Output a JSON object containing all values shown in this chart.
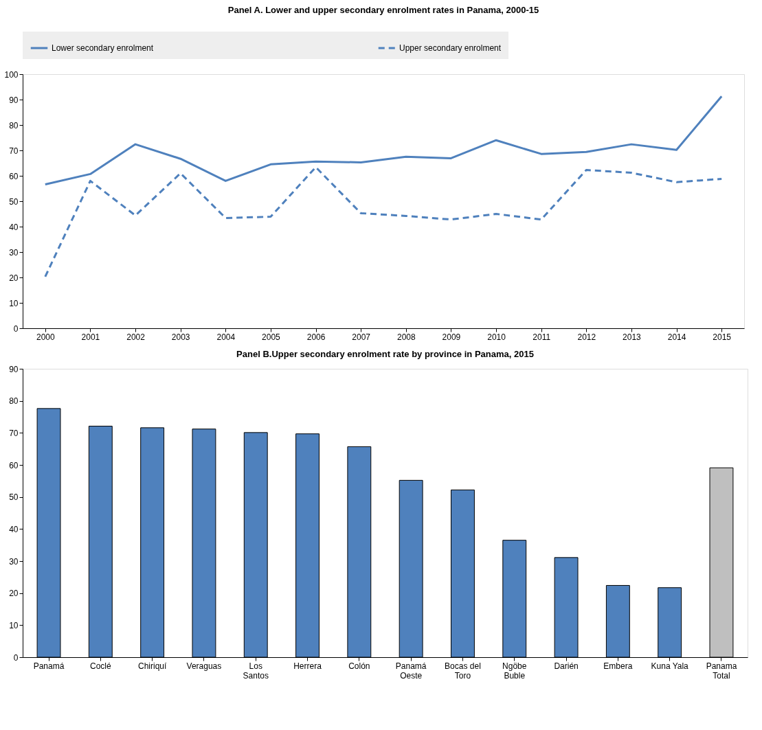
{
  "chart_data": [
    {
      "type": "line",
      "title": "Panel A. Lower and upper secondary enrolment rates in Panama, 2000-15",
      "categories": [
        "2000",
        "2001",
        "2002",
        "2003",
        "2004",
        "2005",
        "2006",
        "2007",
        "2008",
        "2009",
        "2010",
        "2011",
        "2012",
        "2013",
        "2014",
        "2015"
      ],
      "series": [
        {
          "name": "Lower secondary enrolment",
          "color": "#4f81bd",
          "line_style": "solid",
          "values": [
            56.6,
            60.7,
            72.4,
            66.7,
            58.0,
            64.5,
            65.6,
            65.3,
            67.5,
            66.9,
            74.0,
            68.6,
            69.4,
            72.4,
            70.2,
            91.3
          ]
        },
        {
          "name": "Upper secondary enrolment",
          "color": "#4f81bd",
          "line_style": "dashed",
          "values": [
            20.3,
            58.0,
            44.4,
            61.0,
            43.4,
            43.9,
            63.4,
            45.3,
            44.2,
            42.8,
            45.0,
            42.8,
            62.3,
            61.2,
            57.5,
            58.8
          ]
        }
      ],
      "ylim": [
        0,
        100
      ],
      "yticks": [
        0,
        10,
        20,
        30,
        40,
        50,
        60,
        70,
        80,
        90,
        100
      ],
      "grid": false,
      "legend": "top"
    },
    {
      "type": "bar",
      "title": "Panel B.Upper secondary enrolment rate by province in Panama, 2015",
      "categories": [
        "Panamá",
        "Coclé",
        "Chiriquí",
        "Veraguas",
        "Los Santos",
        "Herrera",
        "Colón",
        "Panamá Oeste",
        "Bocas del Toro",
        "Ngöbe Buble",
        "Darién",
        "Embera",
        "Kuna Yala",
        "Panama Total"
      ],
      "values": [
        77.6,
        72.1,
        71.6,
        71.2,
        70.1,
        69.7,
        65.7,
        55.2,
        52.2,
        36.5,
        31.1,
        22.4,
        21.7,
        59.1
      ],
      "colors": [
        "#4f81bd",
        "#4f81bd",
        "#4f81bd",
        "#4f81bd",
        "#4f81bd",
        "#4f81bd",
        "#4f81bd",
        "#4f81bd",
        "#4f81bd",
        "#4f81bd",
        "#4f81bd",
        "#4f81bd",
        "#4f81bd",
        "#bfbfbf"
      ],
      "ylim": [
        0,
        90
      ],
      "yticks": [
        0,
        10,
        20,
        30,
        40,
        50,
        60,
        70,
        80,
        90
      ],
      "grid": false
    }
  ]
}
